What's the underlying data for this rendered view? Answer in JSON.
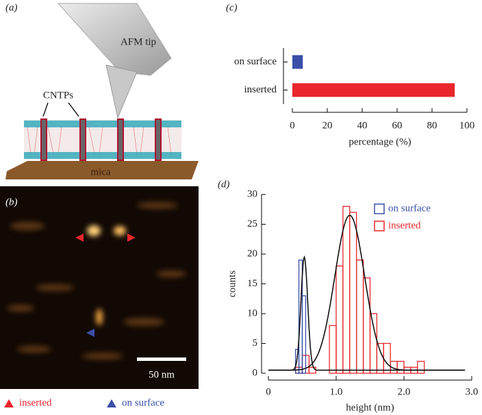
{
  "panels": {
    "a": {
      "label": "(a)",
      "tip": "AFM tip",
      "cntps": "CNTPs",
      "substrate": "mica"
    },
    "b": {
      "label": "(b)",
      "scale": "50 nm",
      "legend": [
        "inserted",
        "on surface"
      ],
      "legend_colors": [
        "#e8262b",
        "#3a4fa8"
      ]
    }
  },
  "chart_data": [
    {
      "type": "bar",
      "orientation": "horizontal",
      "label": "(c)",
      "categories": [
        "on surface",
        "inserted"
      ],
      "values": [
        6,
        93
      ],
      "colors": [
        "#3a4fa8",
        "#e8262b"
      ],
      "xlim": [
        0,
        100
      ],
      "xticks": [
        0,
        20,
        40,
        60,
        80,
        100
      ],
      "x_label": "percentage (%)"
    },
    {
      "type": "histogram",
      "label": "(d)",
      "x_label": "height (nm)",
      "y_label": "counts",
      "xlim": [
        0,
        3
      ],
      "xticks": [
        0,
        {
          "value": 1,
          "label": "1.0"
        },
        {
          "value": 2,
          "label": "2.0"
        },
        {
          "value": 3,
          "label": "3.0"
        }
      ],
      "ylim": [
        0,
        30
      ],
      "yticks": [
        0,
        5,
        10,
        15,
        20,
        25,
        30
      ],
      "series": [
        {
          "name": "on surface",
          "color": "#3a4fa8",
          "bins": [
            0.4,
            0.45,
            0.5,
            0.55,
            0.6
          ],
          "values": [
            4,
            19,
            13,
            0
          ]
        },
        {
          "name": "inserted",
          "color": "#e8262b",
          "bins": [
            0.4,
            0.5,
            0.6,
            0.7,
            0.8,
            0.9,
            1.0,
            1.1,
            1.2,
            1.3,
            1.4,
            1.5,
            1.6,
            1.7,
            1.8,
            1.9,
            2.0,
            2.1,
            2.2,
            2.3,
            2.4
          ],
          "values": [
            1,
            3,
            1,
            0,
            0,
            8,
            18,
            28,
            27,
            19,
            16,
            10,
            5,
            5,
            2,
            2,
            1,
            1,
            2,
            0
          ]
        }
      ],
      "fits": [
        {
          "color": "#111111",
          "peak": 19.5,
          "mean": 0.53,
          "sd": 0.05,
          "offset": 0.5,
          "range": [
            0,
            2.9
          ]
        },
        {
          "color": "#111111",
          "peak": 26.5,
          "mean": 1.2,
          "sd": 0.22,
          "offset": 0.5,
          "range": [
            0,
            2.9
          ]
        }
      ]
    }
  ]
}
